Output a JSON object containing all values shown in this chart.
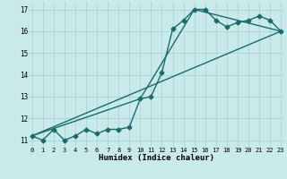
{
  "xlabel": "Humidex (Indice chaleur)",
  "bg_color": "#c8eaea",
  "grid_color": "#aed4d4",
  "line_color": "#1a6b6b",
  "line1_x": [
    0,
    1,
    2,
    3,
    4,
    5,
    6,
    7,
    8,
    9,
    10,
    11,
    12,
    13,
    14,
    15,
    16,
    17,
    18,
    19,
    20,
    21,
    22,
    23
  ],
  "line1_y": [
    11.2,
    11.0,
    11.5,
    11.0,
    11.2,
    11.5,
    11.3,
    11.5,
    11.5,
    11.6,
    12.9,
    13.0,
    14.1,
    16.1,
    16.5,
    17.0,
    17.0,
    16.5,
    16.2,
    16.4,
    16.5,
    16.7,
    16.5,
    16.0
  ],
  "line2_x": [
    0,
    23
  ],
  "line2_y": [
    11.2,
    16.0
  ],
  "line3_x": [
    0,
    10,
    15,
    23
  ],
  "line3_y": [
    11.2,
    12.9,
    17.0,
    16.0
  ],
  "xlim": [
    -0.3,
    23.3
  ],
  "ylim": [
    10.7,
    17.35
  ],
  "xticks": [
    0,
    1,
    2,
    3,
    4,
    5,
    6,
    7,
    8,
    9,
    10,
    11,
    12,
    13,
    14,
    15,
    16,
    17,
    18,
    19,
    20,
    21,
    22,
    23
  ],
  "yticks": [
    11,
    12,
    13,
    14,
    15,
    16,
    17
  ],
  "markersize": 2.5,
  "linewidth": 1.0
}
